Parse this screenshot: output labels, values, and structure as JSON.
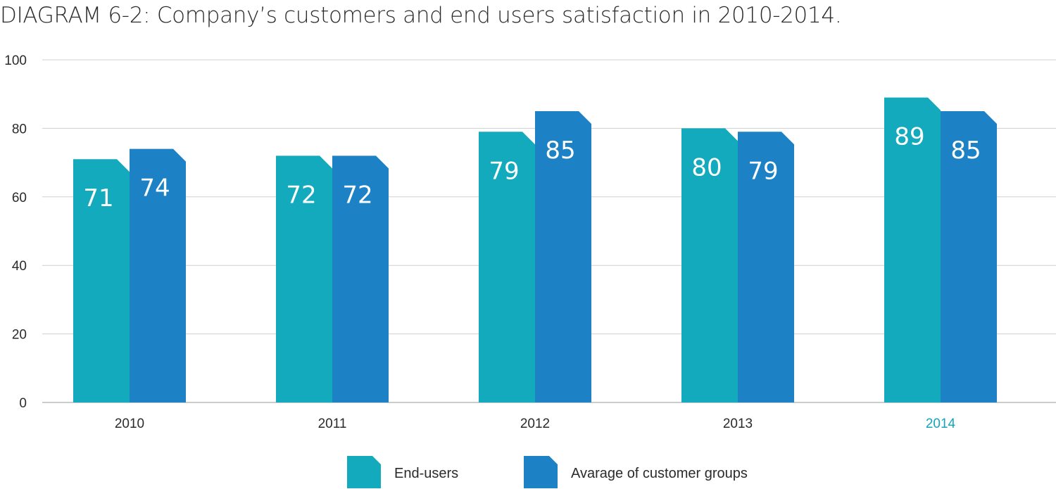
{
  "chart_data": {
    "type": "bar",
    "title": "DIAGRAM 6-2: Company’s customers and end users satisfaction in 2010-2014.",
    "categories": [
      "2010",
      "2011",
      "2012",
      "2013",
      "2014"
    ],
    "highlight_category": "2014",
    "series": [
      {
        "name": "End-users",
        "values": [
          71,
          72,
          79,
          80,
          89
        ],
        "color": "#13aabd"
      },
      {
        "name": "Avarage of customer groups",
        "values": [
          74,
          72,
          85,
          79,
          85
        ],
        "color": "#1c82c5"
      }
    ],
    "ylim": [
      0,
      100
    ],
    "yticks": [
      0,
      20,
      40,
      60,
      80,
      100
    ],
    "grid": true,
    "legend_position": "bottom"
  }
}
